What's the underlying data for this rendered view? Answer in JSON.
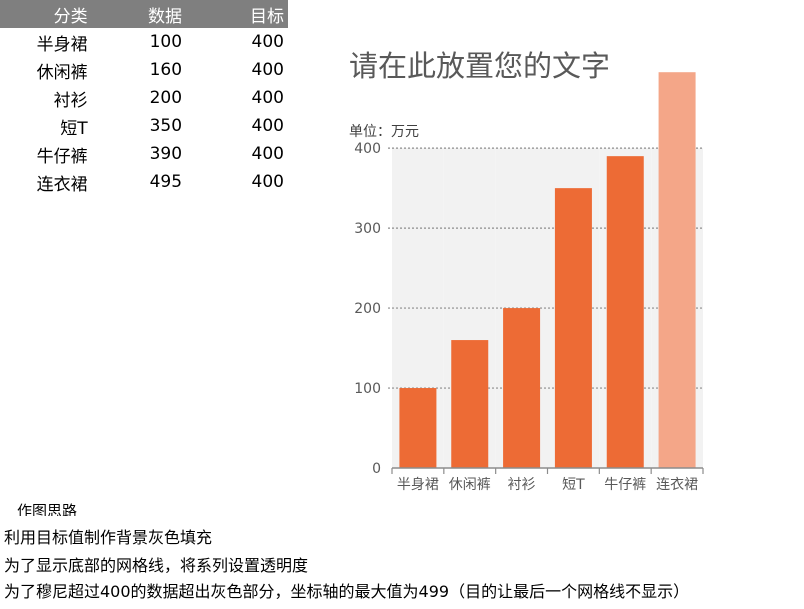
{
  "table": {
    "headers": [
      "分类",
      "数据",
      "目标"
    ],
    "rows": [
      {
        "category": "半身裙",
        "value": "100",
        "target": "400"
      },
      {
        "category": "休闲裤",
        "value": "160",
        "target": "400"
      },
      {
        "category": "衬衫",
        "value": "200",
        "target": "400"
      },
      {
        "category": "短T",
        "value": "350",
        "target": "400"
      },
      {
        "category": "牛仔裤",
        "value": "390",
        "target": "400"
      },
      {
        "category": "连衣裙",
        "value": "495",
        "target": "400"
      }
    ]
  },
  "chart_data": {
    "type": "bar",
    "title": "请在此放置您的文字",
    "unit_label": "单位：万元",
    "categories": [
      "半身裙",
      "休闲裤",
      "衬衫",
      "短T",
      "牛仔裤",
      "连衣裙"
    ],
    "series": [
      {
        "values": [
          100,
          160,
          200,
          350,
          390,
          495
        ],
        "color": "#ed6b35"
      },
      {
        "values": [
          400,
          400,
          400,
          400,
          400,
          400
        ],
        "color": "#f2f2f2"
      }
    ],
    "highlight_index": 5,
    "highlight_color": "#f4a688",
    "marker_color": "#7f7f7f",
    "ylim": [
      0,
      499
    ],
    "yticks": [
      0,
      100,
      200,
      300,
      400
    ],
    "ytick_labels": [
      "0",
      "100",
      "200",
      "300",
      "400"
    ],
    "grid": true
  },
  "notes": {
    "heading": "作图思路",
    "lines": [
      "利用目标值制作背景灰色填充",
      "为了显示底部的网格线，将系列设置透明度",
      "为了穆尼超过400的数据超出灰色部分，坐标轴的最大值为499（目的让最后一个网格线不显示）"
    ]
  }
}
